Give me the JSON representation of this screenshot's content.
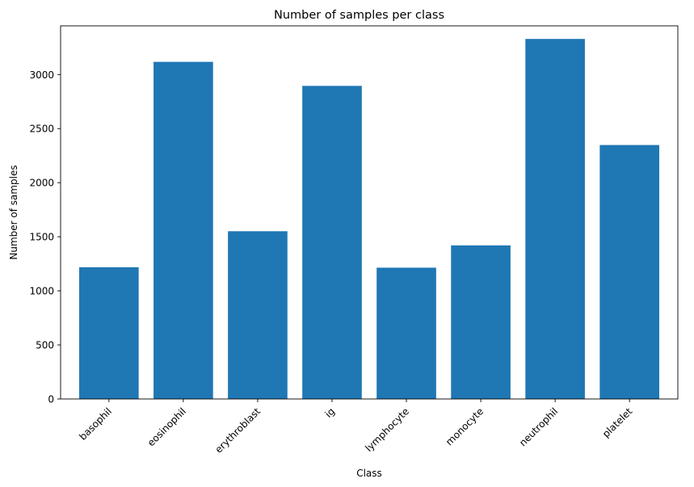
{
  "chart_data": {
    "type": "bar",
    "title": "Number of samples per class",
    "xlabel": "Class",
    "ylabel": "Number of samples",
    "categories": [
      "basophil",
      "eosinophil",
      "erythroblast",
      "ig",
      "lymphocyte",
      "monocyte",
      "neutrophil",
      "platelet"
    ],
    "values": [
      1218,
      3117,
      1551,
      2895,
      1214,
      1420,
      3329,
      2348
    ],
    "ylim": [
      0,
      3450
    ],
    "yticks": [
      0,
      500,
      1000,
      1500,
      2000,
      2500,
      3000
    ],
    "bar_color": "#1f77b4",
    "grid": false,
    "legend": "none"
  }
}
